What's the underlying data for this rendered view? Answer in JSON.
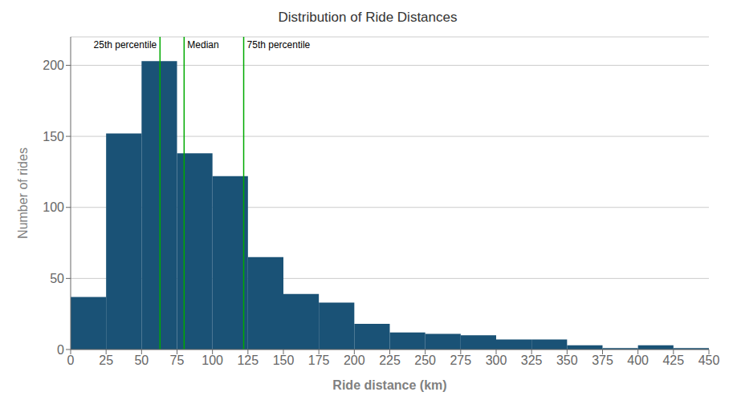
{
  "chart_data": {
    "type": "histogram",
    "title": "Distribution of Ride Distances",
    "xlabel": "Ride distance (km)",
    "ylabel": "Number of rides",
    "bins": [
      0,
      25,
      50,
      75,
      100,
      125,
      150,
      175,
      200,
      225,
      250,
      275,
      300,
      325,
      350,
      375,
      400,
      425,
      450
    ],
    "values": [
      37,
      152,
      203,
      138,
      122,
      65,
      39,
      33,
      18,
      12,
      11,
      10,
      7,
      7,
      3,
      1,
      3,
      1
    ],
    "color": "#1a5276",
    "xlim": [
      0,
      450
    ],
    "ylim": [
      0,
      220
    ],
    "xticks": [
      0,
      25,
      50,
      75,
      100,
      125,
      150,
      175,
      200,
      225,
      250,
      275,
      300,
      325,
      350,
      375,
      400,
      425,
      450
    ],
    "yticks": [
      0,
      50,
      100,
      150,
      200
    ],
    "grid": "y",
    "vlines": [
      {
        "x": 63,
        "label": "25th percentile",
        "color": "#00aa00"
      },
      {
        "x": 80,
        "label": "Median",
        "color": "#00aa00"
      },
      {
        "x": 122,
        "label": "75th percentile",
        "color": "#00aa00"
      }
    ]
  }
}
